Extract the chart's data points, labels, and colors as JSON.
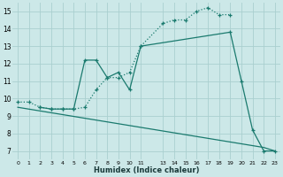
{
  "background_color": "#cce8e8",
  "grid_color": "#aacfcf",
  "line_color": "#1a7a6e",
  "xlabel": "Humidex (Indice chaleur)",
  "xlim": [
    -0.5,
    23.5
  ],
  "ylim": [
    6.5,
    15.5
  ],
  "xtick_values": [
    0,
    1,
    2,
    3,
    4,
    5,
    6,
    7,
    8,
    9,
    10,
    11,
    13,
    14,
    15,
    16,
    17,
    18,
    19,
    20,
    21,
    22,
    23
  ],
  "xtick_labels": [
    "0",
    "1",
    "2",
    "3",
    "4",
    "5",
    "6",
    "7",
    "8",
    "9",
    "10",
    "11",
    "13",
    "14",
    "15",
    "16",
    "17",
    "18",
    "19",
    "20",
    "21",
    "22",
    "23"
  ],
  "yticks": [
    7,
    8,
    9,
    10,
    11,
    12,
    13,
    14,
    15
  ],
  "series": [
    {
      "x": [
        0,
        1,
        2,
        3,
        4,
        5,
        6,
        7,
        8,
        9,
        10,
        11,
        13,
        14,
        15,
        16,
        17,
        18,
        19
      ],
      "y": [
        9.8,
        9.8,
        9.5,
        9.4,
        9.4,
        9.4,
        9.5,
        10.5,
        11.2,
        11.2,
        11.5,
        13.0,
        14.3,
        14.5,
        14.5,
        15.0,
        15.2,
        14.8,
        14.8
      ],
      "linestyle": ":",
      "marker": true,
      "linewidth": 0.9
    },
    {
      "x": [
        2,
        3,
        4,
        5,
        6,
        7,
        8,
        9,
        10,
        11,
        19,
        20,
        21,
        22,
        23
      ],
      "y": [
        9.5,
        9.4,
        9.4,
        9.4,
        12.2,
        12.2,
        11.2,
        11.5,
        10.5,
        13.0,
        13.8,
        11.0,
        8.2,
        7.0,
        7.0
      ],
      "linestyle": "-",
      "marker": true,
      "linewidth": 0.9
    },
    {
      "x": [
        0,
        22,
        23
      ],
      "y": [
        9.5,
        7.2,
        7.0
      ],
      "linestyle": "-",
      "marker": false,
      "linewidth": 0.9
    }
  ]
}
